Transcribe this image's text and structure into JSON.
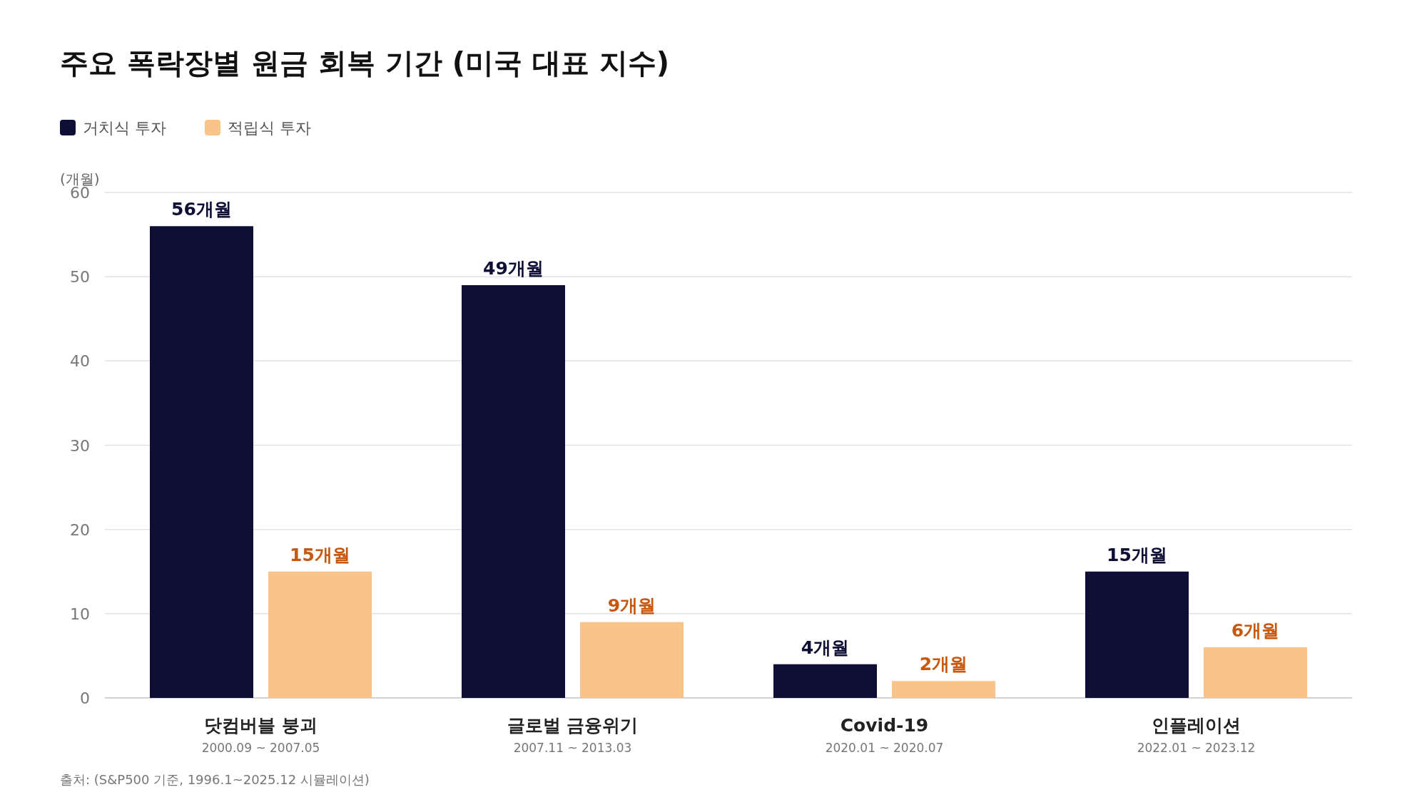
{
  "chart_data": {
    "type": "bar",
    "title": "주요 폭락장별 원금 회복 기간 (미국 대표 지수)",
    "ylabel": "(개월)",
    "categories": [
      "닷컴버블 붕괴\n2000.09 ~ 2007.05",
      "글로벌 금융위기\n2007.11 ~ 2013.03",
      "Covid-19\n2020.01 ~ 2020.07",
      "인플레이션\n2022.01 ~ 2023.12"
    ],
    "series": [
      {
        "name": "거치식 투자",
        "color": "#0f0f35",
        "values": [
          56,
          49,
          4,
          15
        ],
        "value_labels": [
          "56개월",
          "49개월",
          "4개월",
          "15개월"
        ]
      },
      {
        "name": "적립식 투자",
        "color": "#f9c48a",
        "values": [
          15,
          9,
          2,
          6
        ],
        "value_labels": [
          "15개월",
          "9개월",
          "2개월",
          "6개월"
        ]
      }
    ],
    "ylim": [
      0,
      60
    ],
    "yticks": [
      0,
      10,
      20,
      30,
      40,
      50,
      60
    ],
    "grid": "y",
    "legend": "top left",
    "annotations": [
      "출처: (S&P500 기준, 1996.1~2025.12 시뮬레이션)"
    ]
  }
}
